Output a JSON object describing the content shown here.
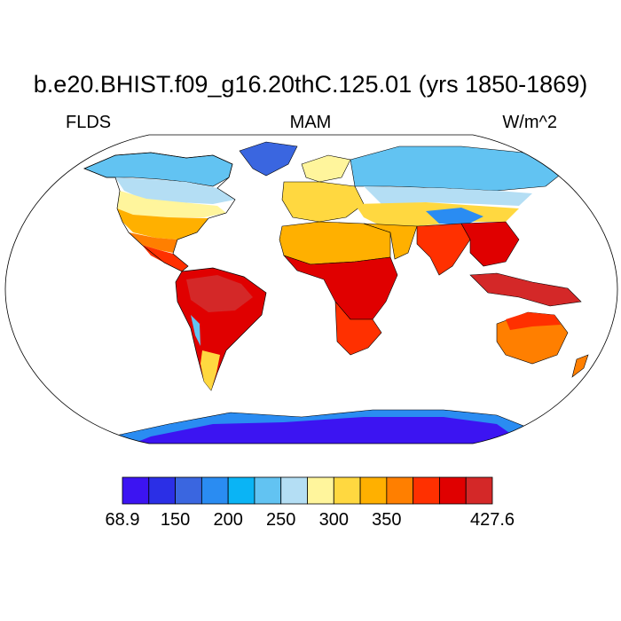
{
  "title": "b.e20.BHIST.f09_g16.20thC.125.01 (yrs 1850-1869)",
  "left_label": "FLDS",
  "center_label": "MAM",
  "right_label": "W/m^2",
  "colorbar": {
    "colors": [
      "#3c14f2",
      "#2b2fe6",
      "#3a66e0",
      "#2a8cf2",
      "#0ab4f5",
      "#62c3f2",
      "#b4def4",
      "#fff59c",
      "#ffd840",
      "#ffb000",
      "#ff7f00",
      "#ff3000",
      "#e00000",
      "#d42828"
    ],
    "labels": [
      {
        "text": "68.9",
        "edge": 0
      },
      {
        "text": "150",
        "edge": 2
      },
      {
        "text": "200",
        "edge": 4
      },
      {
        "text": "250",
        "edge": 6
      },
      {
        "text": "300",
        "edge": 8
      },
      {
        "text": "350",
        "edge": 10
      },
      {
        "text": "427.6",
        "edge": 14
      }
    ]
  },
  "regions": [
    {
      "name": "greenland",
      "color": "#3a66e0"
    },
    {
      "name": "canada-north",
      "color": "#62c3f2"
    },
    {
      "name": "canada-south",
      "color": "#b4def4"
    },
    {
      "name": "usa-north",
      "color": "#fff59c"
    },
    {
      "name": "usa-south",
      "color": "#ffb000"
    },
    {
      "name": "mexico",
      "color": "#ff7f00"
    },
    {
      "name": "central-america",
      "color": "#ff3000"
    },
    {
      "name": "south-america",
      "color": "#e00000"
    },
    {
      "name": "amazon",
      "color": "#d42828"
    },
    {
      "name": "patagonia",
      "color": "#ffd840"
    },
    {
      "name": "andes",
      "color": "#62c3f2"
    },
    {
      "name": "europe",
      "color": "#ffd840"
    },
    {
      "name": "scandinavia",
      "color": "#fff59c"
    },
    {
      "name": "russia",
      "color": "#62c3f2"
    },
    {
      "name": "siberia-south",
      "color": "#b4def4"
    },
    {
      "name": "central-asia",
      "color": "#ffd840"
    },
    {
      "name": "tibet",
      "color": "#2a8cf2"
    },
    {
      "name": "sahara",
      "color": "#ffb000"
    },
    {
      "name": "africa-central",
      "color": "#e00000"
    },
    {
      "name": "africa-south",
      "color": "#ff3000"
    },
    {
      "name": "india",
      "color": "#ff3000"
    },
    {
      "name": "southeast-asia",
      "color": "#e00000"
    },
    {
      "name": "indonesia",
      "color": "#d42828"
    },
    {
      "name": "australia",
      "color": "#ff7f00"
    },
    {
      "name": "australia-north",
      "color": "#ff3000"
    },
    {
      "name": "new-zealand",
      "color": "#ff7f00"
    },
    {
      "name": "antarctica",
      "color": "#3c14f2"
    },
    {
      "name": "antarctica-coast",
      "color": "#2a8cf2"
    }
  ]
}
